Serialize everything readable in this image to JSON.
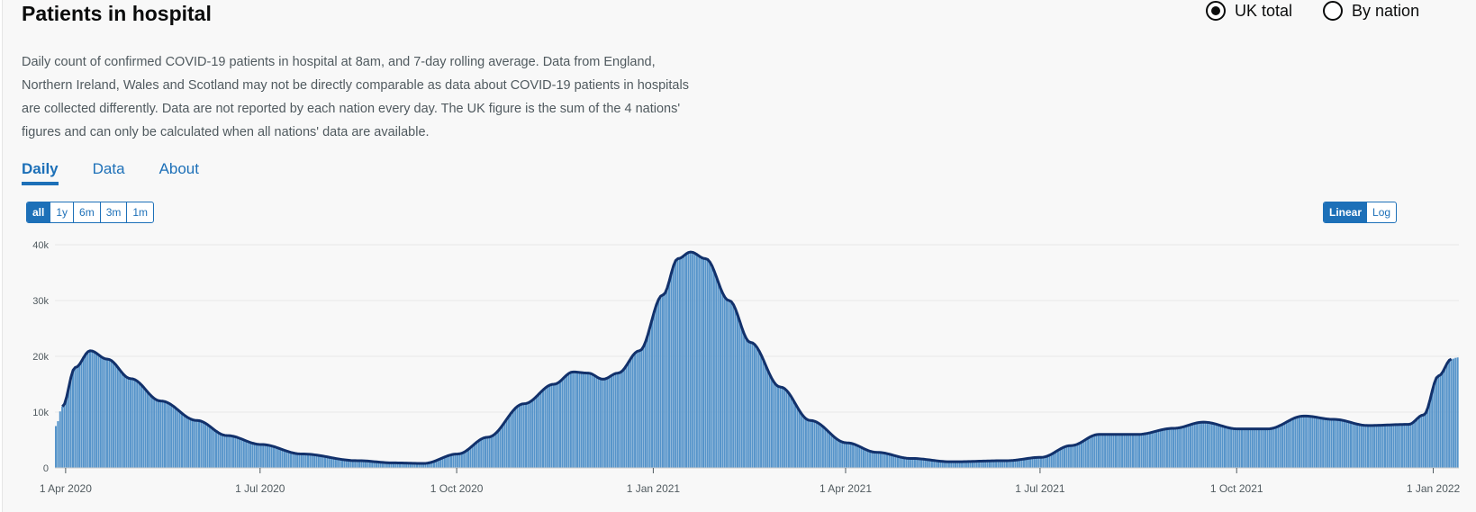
{
  "title": "Patients in hospital",
  "radios": [
    {
      "label": "UK total",
      "checked": true
    },
    {
      "label": "By nation",
      "checked": false
    }
  ],
  "description_lines": [
    "Daily count of confirmed COVID-19 patients in hospital at 8am, and 7-day rolling average. Data from England,",
    "Northern Ireland, Wales and Scotland may not be directly comparable as data about COVID-19 patients in hospitals",
    "are collected differently. Data are not reported by each nation every day. The UK figure is the sum of the 4 nations'",
    "figures and can only be calculated when all nations' data are available."
  ],
  "tabs": [
    "Daily",
    "Data",
    "About"
  ],
  "active_tab": "Daily",
  "range_buttons": [
    "all",
    "1y",
    "6m",
    "3m",
    "1m"
  ],
  "active_range": "all",
  "scale_buttons": [
    "Linear",
    "Log"
  ],
  "active_scale": "Linear",
  "colors": {
    "bar": "#5694ca",
    "line": "#12316b",
    "grid": "#e8e8e8",
    "accent": "#1d70b8"
  },
  "chart_data": {
    "type": "bar",
    "series": [
      {
        "kind": "bar"
      },
      {
        "kind": "line"
      }
    ],
    "x_start": "2020-03-27",
    "x_end": "2022-01-12",
    "ylim": [
      0,
      40000
    ],
    "yticks": [
      0,
      10000,
      20000,
      30000,
      40000
    ],
    "ytick_labels": [
      "0",
      "10k",
      "20k",
      "30k",
      "40k"
    ],
    "xtick_dates": [
      "2020-04-01",
      "2020-07-01",
      "2020-10-01",
      "2021-01-01",
      "2021-04-01",
      "2021-07-01",
      "2021-10-01",
      "2022-01-01"
    ],
    "xtick_labels": [
      "1 Apr 2020",
      "1 Jul 2020",
      "1 Oct 2020",
      "1 Jan 2021",
      "1 Apr 2021",
      "1 Jul 2021",
      "1 Oct 2021",
      "1 Jan 2022"
    ],
    "grid": true,
    "keypoints": [
      [
        "2020-03-27",
        7500
      ],
      [
        "2020-03-30",
        11000
      ],
      [
        "2020-04-05",
        18000
      ],
      [
        "2020-04-12",
        21000
      ],
      [
        "2020-04-20",
        19500
      ],
      [
        "2020-05-01",
        16000
      ],
      [
        "2020-05-15",
        12000
      ],
      [
        "2020-06-01",
        8500
      ],
      [
        "2020-06-15",
        5800
      ],
      [
        "2020-07-01",
        4200
      ],
      [
        "2020-07-20",
        2500
      ],
      [
        "2020-08-15",
        1300
      ],
      [
        "2020-09-01",
        900
      ],
      [
        "2020-09-15",
        800
      ],
      [
        "2020-10-01",
        2500
      ],
      [
        "2020-10-15",
        5500
      ],
      [
        "2020-11-01",
        11500
      ],
      [
        "2020-11-15",
        15000
      ],
      [
        "2020-11-24",
        17200
      ],
      [
        "2020-12-01",
        17000
      ],
      [
        "2020-12-08",
        15900
      ],
      [
        "2020-12-15",
        17000
      ],
      [
        "2020-12-25",
        21000
      ],
      [
        "2021-01-05",
        31000
      ],
      [
        "2021-01-12",
        37500
      ],
      [
        "2021-01-18",
        38700
      ],
      [
        "2021-01-25",
        37500
      ],
      [
        "2021-02-05",
        30000
      ],
      [
        "2021-02-15",
        22500
      ],
      [
        "2021-03-01",
        14500
      ],
      [
        "2021-03-15",
        8500
      ],
      [
        "2021-04-01",
        4500
      ],
      [
        "2021-04-15",
        2800
      ],
      [
        "2021-05-01",
        1700
      ],
      [
        "2021-05-20",
        1100
      ],
      [
        "2021-06-15",
        1300
      ],
      [
        "2021-07-01",
        1900
      ],
      [
        "2021-07-15",
        4000
      ],
      [
        "2021-07-28",
        6000
      ],
      [
        "2021-08-15",
        6000
      ],
      [
        "2021-09-01",
        7100
      ],
      [
        "2021-09-15",
        8200
      ],
      [
        "2021-10-01",
        7000
      ],
      [
        "2021-10-15",
        7000
      ],
      [
        "2021-11-01",
        9300
      ],
      [
        "2021-11-15",
        8700
      ],
      [
        "2021-12-01",
        7600
      ],
      [
        "2021-12-20",
        7800
      ],
      [
        "2021-12-27",
        9500
      ],
      [
        "2022-01-03",
        16500
      ],
      [
        "2022-01-09",
        19500
      ],
      [
        "2022-01-12",
        19800
      ]
    ]
  }
}
